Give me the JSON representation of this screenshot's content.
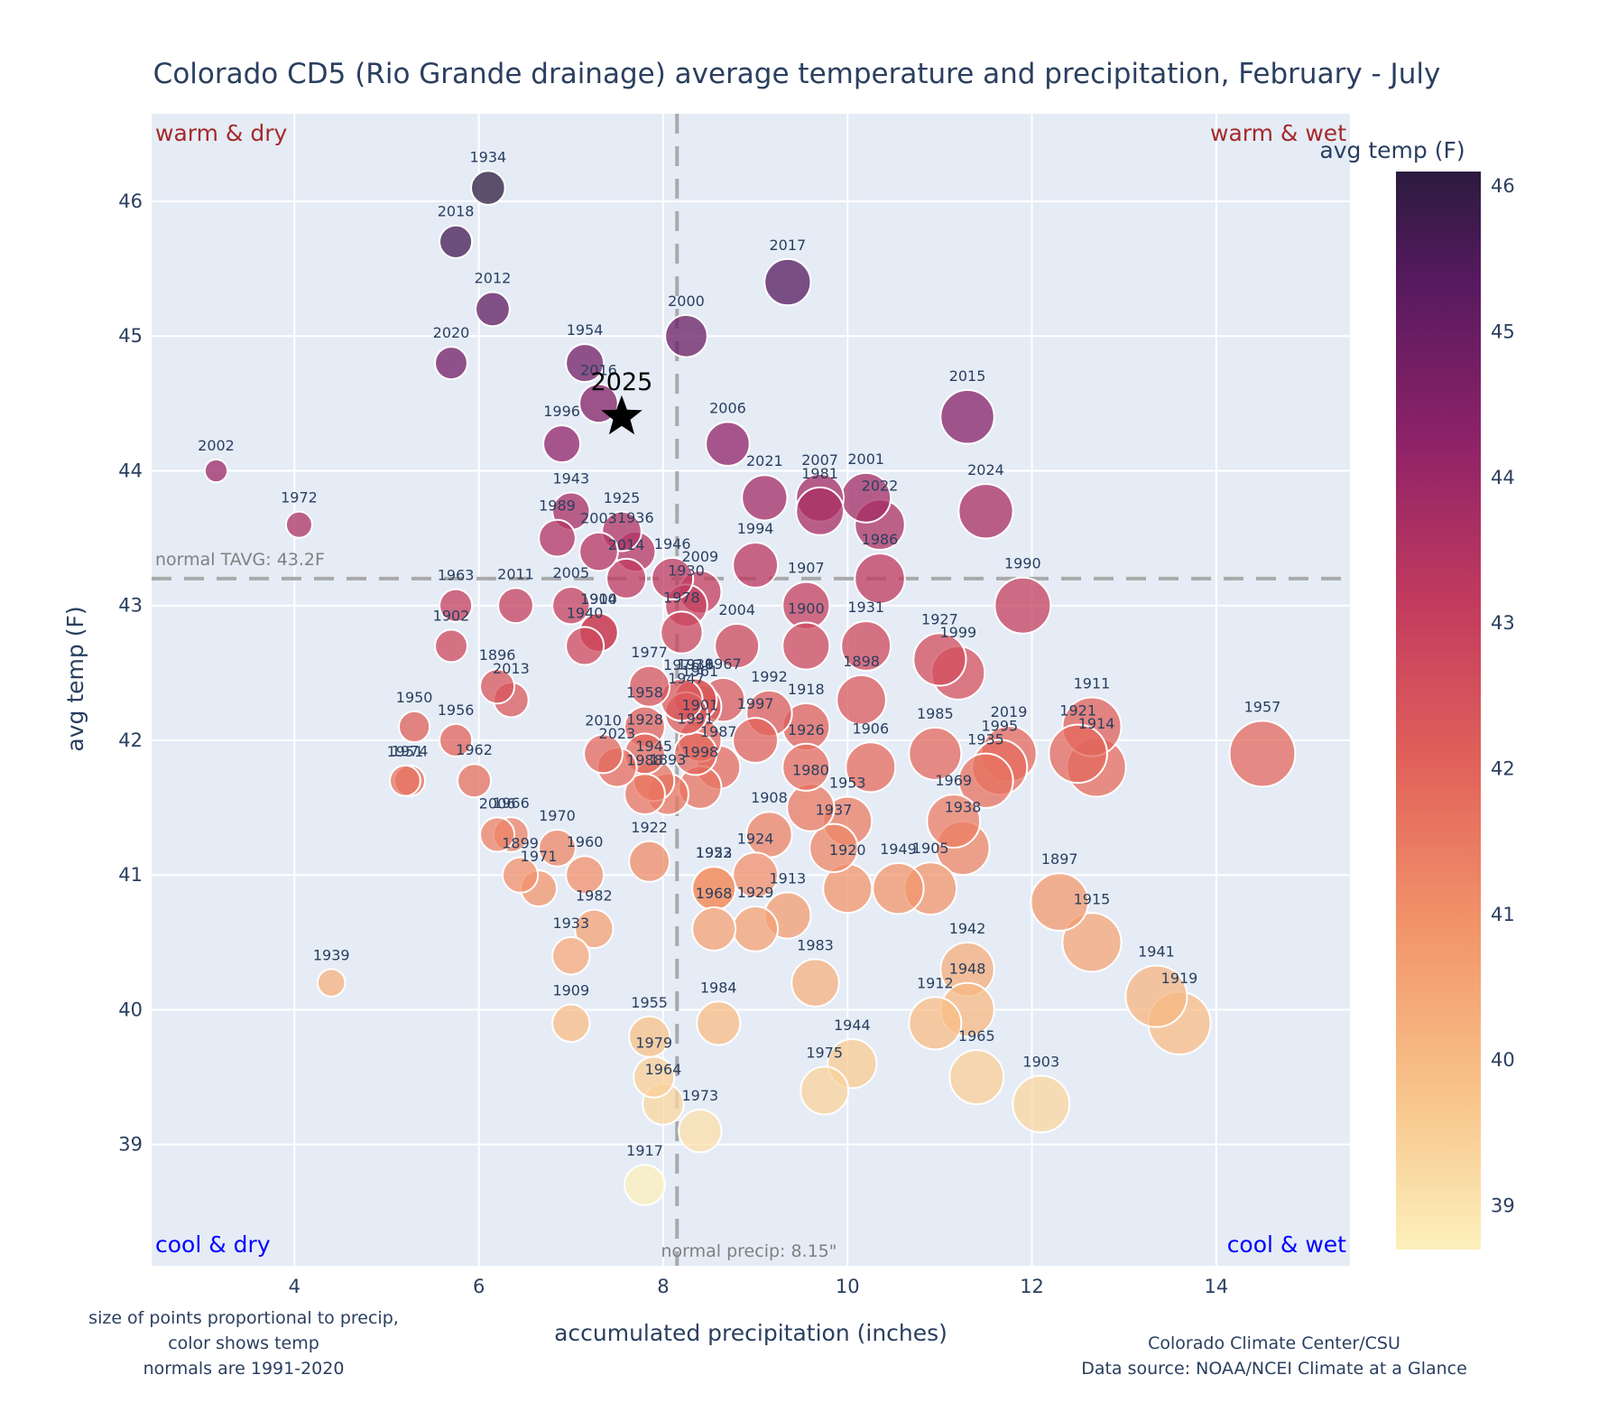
{
  "chart_data": {
    "type": "scatter",
    "title": "Colorado CD5 (Rio Grande drainage) average temperature and precipitation, February - July",
    "xlabel": "accumulated precipitation (inches)",
    "ylabel": "avg temp (F)",
    "xlim": [
      2.45,
      15.45
    ],
    "ylim": [
      38.1,
      46.65
    ],
    "xticks": [
      4,
      6,
      8,
      10,
      12,
      14
    ],
    "yticks": [
      39,
      40,
      41,
      42,
      43,
      44,
      45,
      46
    ],
    "grid": true,
    "colorbar": {
      "title": "avg temp (F)",
      "range": [
        38.7,
        46.1
      ],
      "ticks": [
        39,
        40,
        41,
        42,
        43,
        44,
        45,
        46
      ],
      "colorscale": "magma-reversed"
    },
    "size_encodes": "precipitation",
    "reference_lines": {
      "normal_temp": {
        "value": 43.2,
        "label": "normal TAVG: 43.2F"
      },
      "normal_precip": {
        "value": 8.15,
        "label": "normal precip: 8.15\""
      }
    },
    "quadrant_labels": {
      "top_left": "warm & dry",
      "top_right": "warm & wet",
      "bottom_left": "cool & dry",
      "bottom_right": "cool & wet"
    },
    "highlight": {
      "label": "2025",
      "x": 7.55,
      "y": 44.4,
      "marker": "star"
    },
    "points": [
      {
        "year": "1934",
        "x": 6.1,
        "y": 46.1
      },
      {
        "year": "2018",
        "x": 5.75,
        "y": 45.7
      },
      {
        "year": "2012",
        "x": 6.15,
        "y": 45.2
      },
      {
        "year": "2020",
        "x": 5.7,
        "y": 44.8
      },
      {
        "year": "1954",
        "x": 7.15,
        "y": 44.8
      },
      {
        "year": "2016",
        "x": 7.3,
        "y": 44.5
      },
      {
        "year": "1996",
        "x": 6.9,
        "y": 44.2
      },
      {
        "year": "2002",
        "x": 3.15,
        "y": 44.0
      },
      {
        "year": "1972",
        "x": 4.05,
        "y": 43.6
      },
      {
        "year": "2017",
        "x": 9.35,
        "y": 45.4
      },
      {
        "year": "2000",
        "x": 8.25,
        "y": 45.0
      },
      {
        "year": "2006",
        "x": 8.7,
        "y": 44.2
      },
      {
        "year": "2015",
        "x": 11.3,
        "y": 44.4
      },
      {
        "year": "2024",
        "x": 11.5,
        "y": 43.7
      },
      {
        "year": "2021",
        "x": 9.1,
        "y": 43.8
      },
      {
        "year": "2007",
        "x": 9.7,
        "y": 43.8
      },
      {
        "year": "1981",
        "x": 9.7,
        "y": 43.7
      },
      {
        "year": "2001",
        "x": 10.2,
        "y": 43.8
      },
      {
        "year": "2022",
        "x": 10.35,
        "y": 43.6
      },
      {
        "year": "1986",
        "x": 10.35,
        "y": 43.2
      },
      {
        "year": "1994",
        "x": 9.0,
        "y": 43.3
      },
      {
        "year": "1943",
        "x": 7.0,
        "y": 43.7
      },
      {
        "year": "1989",
        "x": 6.85,
        "y": 43.5
      },
      {
        "year": "1925",
        "x": 7.55,
        "y": 43.55
      },
      {
        "year": "2003",
        "x": 7.3,
        "y": 43.4
      },
      {
        "year": "1936",
        "x": 7.7,
        "y": 43.4
      },
      {
        "year": "2014",
        "x": 7.6,
        "y": 43.2
      },
      {
        "year": "1946",
        "x": 8.1,
        "y": 43.2
      },
      {
        "year": "2009",
        "x": 8.4,
        "y": 43.1
      },
      {
        "year": "1930",
        "x": 8.25,
        "y": 43.0
      },
      {
        "year": "1978",
        "x": 8.2,
        "y": 42.8
      },
      {
        "year": "1990",
        "x": 11.9,
        "y": 43.0
      },
      {
        "year": "1907",
        "x": 9.55,
        "y": 43.0
      },
      {
        "year": "1963",
        "x": 5.75,
        "y": 43.0
      },
      {
        "year": "2011",
        "x": 6.4,
        "y": 43.0
      },
      {
        "year": "2005",
        "x": 7.0,
        "y": 43.0
      },
      {
        "year": "1910",
        "x": 7.3,
        "y": 42.8
      },
      {
        "year": "1904",
        "x": 7.3,
        "y": 42.8
      },
      {
        "year": "1940",
        "x": 7.15,
        "y": 42.7
      },
      {
        "year": "1902",
        "x": 5.7,
        "y": 42.7
      },
      {
        "year": "1900",
        "x": 9.55,
        "y": 42.7
      },
      {
        "year": "1931",
        "x": 10.2,
        "y": 42.7
      },
      {
        "year": "2004",
        "x": 8.8,
        "y": 42.7
      },
      {
        "year": "1927",
        "x": 11.0,
        "y": 42.6
      },
      {
        "year": "1999",
        "x": 11.2,
        "y": 42.5
      },
      {
        "year": "1896",
        "x": 6.2,
        "y": 42.4
      },
      {
        "year": "2013",
        "x": 6.35,
        "y": 42.3
      },
      {
        "year": "1977",
        "x": 7.85,
        "y": 42.4
      },
      {
        "year": "1916",
        "x": 8.35,
        "y": 42.3
      },
      {
        "year": "1976",
        "x": 8.2,
        "y": 42.3
      },
      {
        "year": "1961",
        "x": 8.4,
        "y": 42.25
      },
      {
        "year": "1967",
        "x": 8.65,
        "y": 42.3
      },
      {
        "year": "1947",
        "x": 8.25,
        "y": 42.2
      },
      {
        "year": "1958",
        "x": 7.8,
        "y": 42.1
      },
      {
        "year": "1939a",
        "x": 8.35,
        "y": 42.3
      },
      {
        "year": "1992",
        "x": 9.15,
        "y": 42.2
      },
      {
        "year": "1918",
        "x": 9.55,
        "y": 42.1
      },
      {
        "year": "1898",
        "x": 10.15,
        "y": 42.3
      },
      {
        "year": "1997",
        "x": 9.0,
        "y": 42.0
      },
      {
        "year": "1926",
        "x": 9.55,
        "y": 41.8
      },
      {
        "year": "1906",
        "x": 10.25,
        "y": 41.8
      },
      {
        "year": "1950",
        "x": 5.3,
        "y": 42.1
      },
      {
        "year": "1956",
        "x": 5.75,
        "y": 42.0
      },
      {
        "year": "1951",
        "x": 5.2,
        "y": 41.7
      },
      {
        "year": "1974",
        "x": 5.25,
        "y": 41.7
      },
      {
        "year": "1962",
        "x": 5.95,
        "y": 41.7
      },
      {
        "year": "2010",
        "x": 7.35,
        "y": 41.9
      },
      {
        "year": "2023",
        "x": 7.5,
        "y": 41.8
      },
      {
        "year": "1928",
        "x": 7.8,
        "y": 41.9
      },
      {
        "year": "1945",
        "x": 7.9,
        "y": 41.7
      },
      {
        "year": "1988",
        "x": 7.8,
        "y": 41.6
      },
      {
        "year": "1893",
        "x": 8.05,
        "y": 41.6
      },
      {
        "year": "1987",
        "x": 8.6,
        "y": 41.8
      },
      {
        "year": "1901",
        "x": 8.4,
        "y": 42.0
      },
      {
        "year": "1991",
        "x": 8.35,
        "y": 41.9
      },
      {
        "year": "1998",
        "x": 8.4,
        "y": 41.65
      },
      {
        "year": "1985",
        "x": 10.95,
        "y": 41.9
      },
      {
        "year": "2019",
        "x": 11.75,
        "y": 41.9
      },
      {
        "year": "1995",
        "x": 11.65,
        "y": 41.8
      },
      {
        "year": "1935",
        "x": 11.5,
        "y": 41.7
      },
      {
        "year": "1911",
        "x": 12.65,
        "y": 42.1
      },
      {
        "year": "1921",
        "x": 12.5,
        "y": 41.9
      },
      {
        "year": "1914",
        "x": 12.7,
        "y": 41.8
      },
      {
        "year": "1957",
        "x": 14.5,
        "y": 41.9
      },
      {
        "year": "1969",
        "x": 11.15,
        "y": 41.4
      },
      {
        "year": "1938",
        "x": 11.25,
        "y": 41.2
      },
      {
        "year": "1980",
        "x": 9.6,
        "y": 41.5
      },
      {
        "year": "1953",
        "x": 10.0,
        "y": 41.4
      },
      {
        "year": "1908",
        "x": 9.15,
        "y": 41.3
      },
      {
        "year": "1937",
        "x": 9.85,
        "y": 41.2
      },
      {
        "year": "1920",
        "x": 10.0,
        "y": 40.9
      },
      {
        "year": "1949",
        "x": 10.55,
        "y": 40.9
      },
      {
        "year": "1905",
        "x": 10.9,
        "y": 40.9
      },
      {
        "year": "1924",
        "x": 9.0,
        "y": 41.0
      },
      {
        "year": "1952",
        "x": 8.55,
        "y": 40.9
      },
      {
        "year": "1923",
        "x": 8.55,
        "y": 40.9
      },
      {
        "year": "1922",
        "x": 7.85,
        "y": 41.1
      },
      {
        "year": "1913",
        "x": 9.35,
        "y": 40.7
      },
      {
        "year": "1968",
        "x": 8.55,
        "y": 40.6
      },
      {
        "year": "1929",
        "x": 9.0,
        "y": 40.6
      },
      {
        "year": "2006b",
        "x": 6.2,
        "y": 41.3
      },
      {
        "year": "1966",
        "x": 6.35,
        "y": 41.3
      },
      {
        "year": "1970",
        "x": 6.85,
        "y": 41.2
      },
      {
        "year": "1899",
        "x": 6.45,
        "y": 41.0
      },
      {
        "year": "1971",
        "x": 6.65,
        "y": 40.9
      },
      {
        "year": "1960",
        "x": 7.15,
        "y": 41.0
      },
      {
        "year": "1982",
        "x": 7.25,
        "y": 40.6
      },
      {
        "year": "1933",
        "x": 7.0,
        "y": 40.4
      },
      {
        "year": "1897",
        "x": 12.3,
        "y": 40.8
      },
      {
        "year": "1915",
        "x": 12.65,
        "y": 40.5
      },
      {
        "year": "1942",
        "x": 11.3,
        "y": 40.3
      },
      {
        "year": "1948",
        "x": 11.3,
        "y": 40.0
      },
      {
        "year": "1912",
        "x": 10.95,
        "y": 39.9
      },
      {
        "year": "1983",
        "x": 9.65,
        "y": 40.2
      },
      {
        "year": "1941",
        "x": 13.35,
        "y": 40.1
      },
      {
        "year": "1919",
        "x": 13.6,
        "y": 39.9
      },
      {
        "year": "1939",
        "x": 4.4,
        "y": 40.2
      },
      {
        "year": "1909",
        "x": 7.0,
        "y": 39.9
      },
      {
        "year": "1984",
        "x": 8.6,
        "y": 39.9
      },
      {
        "year": "1955",
        "x": 7.85,
        "y": 39.8
      },
      {
        "year": "1944",
        "x": 10.05,
        "y": 39.6
      },
      {
        "year": "1979",
        "x": 7.9,
        "y": 39.5
      },
      {
        "year": "1965",
        "x": 11.4,
        "y": 39.5
      },
      {
        "year": "1975",
        "x": 9.75,
        "y": 39.4
      },
      {
        "year": "1964",
        "x": 8.0,
        "y": 39.3
      },
      {
        "year": "1903",
        "x": 12.1,
        "y": 39.3
      },
      {
        "year": "1973",
        "x": 8.4,
        "y": 39.1
      },
      {
        "year": "1917",
        "x": 7.8,
        "y": 38.7
      }
    ]
  },
  "notes": {
    "left_1": "size of points proportional to precip,",
    "left_2": "color shows temp",
    "left_3": "normals are 1991-2020",
    "right_1": "Colorado Climate Center/CSU",
    "right_2": "Data source: NOAA/NCEI Climate at a Glance"
  }
}
